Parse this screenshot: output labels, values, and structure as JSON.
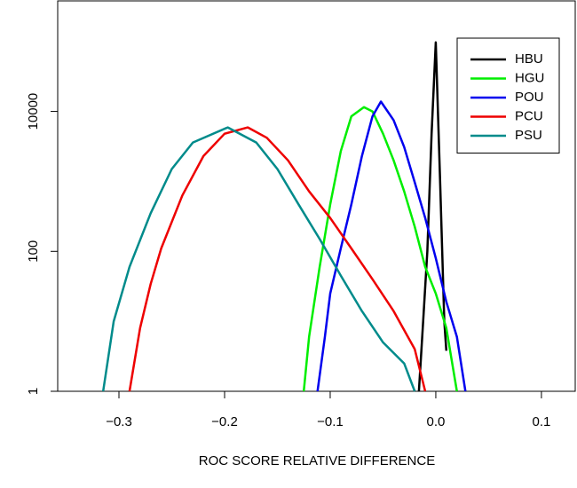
{
  "chart_data": {
    "type": "line",
    "x_label": "ROC SCORE RELATIVE DIFFERENCE",
    "log_y": true,
    "legend": "top-right",
    "xlim": [
      -0.358,
      0.132
    ],
    "ylim": [
      1,
      380000
    ],
    "xticks": [
      {
        "value": -0.3,
        "label": "−0.3"
      },
      {
        "value": -0.2,
        "label": "−0.2"
      },
      {
        "value": -0.1,
        "label": "−0.1"
      },
      {
        "value": 0,
        "label": "0.0"
      },
      0.1
    ],
    "yticks": [
      1,
      100,
      10000
    ],
    "series": [
      {
        "name": "HBU",
        "color": "#000000",
        "x": [
          -0.016,
          -0.012,
          -0.008,
          -0.004,
          0,
          0.004,
          0.008,
          0.01
        ],
        "values": [
          1,
          10,
          100,
          4800,
          97000,
          1100,
          10,
          3.8
        ]
      },
      {
        "name": "HGU",
        "color": "#00ee00",
        "x": [
          -0.125,
          -0.12,
          -0.11,
          -0.1,
          -0.09,
          -0.08,
          -0.068,
          -0.06,
          -0.05,
          -0.04,
          -0.03,
          -0.02,
          -0.01,
          0,
          0.01,
          0.02
        ],
        "values": [
          1,
          6,
          60,
          470,
          2700,
          8500,
          11500,
          10000,
          4800,
          2000,
          720,
          225,
          60,
          25,
          8,
          1
        ]
      },
      {
        "name": "POU",
        "color": "#0000ee",
        "x": [
          -0.112,
          -0.105,
          -0.1,
          -0.09,
          -0.08,
          -0.07,
          -0.06,
          -0.052,
          -0.04,
          -0.03,
          -0.02,
          -0.01,
          0,
          0.01,
          0.02,
          0.028
        ],
        "values": [
          1,
          6,
          25,
          110,
          470,
          2300,
          8500,
          13800,
          7500,
          3100,
          970,
          300,
          80,
          19,
          6,
          1
        ]
      },
      {
        "name": "PCU",
        "color": "#ee0000",
        "x": [
          -0.29,
          -0.28,
          -0.27,
          -0.26,
          -0.24,
          -0.22,
          -0.2,
          -0.178,
          -0.16,
          -0.14,
          -0.12,
          -0.1,
          -0.08,
          -0.06,
          -0.04,
          -0.02,
          -0.01
        ],
        "values": [
          1,
          8,
          34,
          110,
          630,
          2300,
          4800,
          5900,
          4200,
          2000,
          720,
          300,
          110,
          40,
          14,
          4,
          1
        ]
      },
      {
        "name": "PSU",
        "color": "#008b8b",
        "x": [
          -0.315,
          -0.305,
          -0.29,
          -0.27,
          -0.25,
          -0.23,
          -0.197,
          -0.17,
          -0.15,
          -0.13,
          -0.11,
          -0.09,
          -0.07,
          -0.05,
          -0.03,
          -0.02
        ],
        "values": [
          1,
          10,
          60,
          350,
          1500,
          3600,
          5900,
          3600,
          1500,
          470,
          150,
          45,
          14,
          5,
          2.5,
          1
        ]
      }
    ]
  }
}
